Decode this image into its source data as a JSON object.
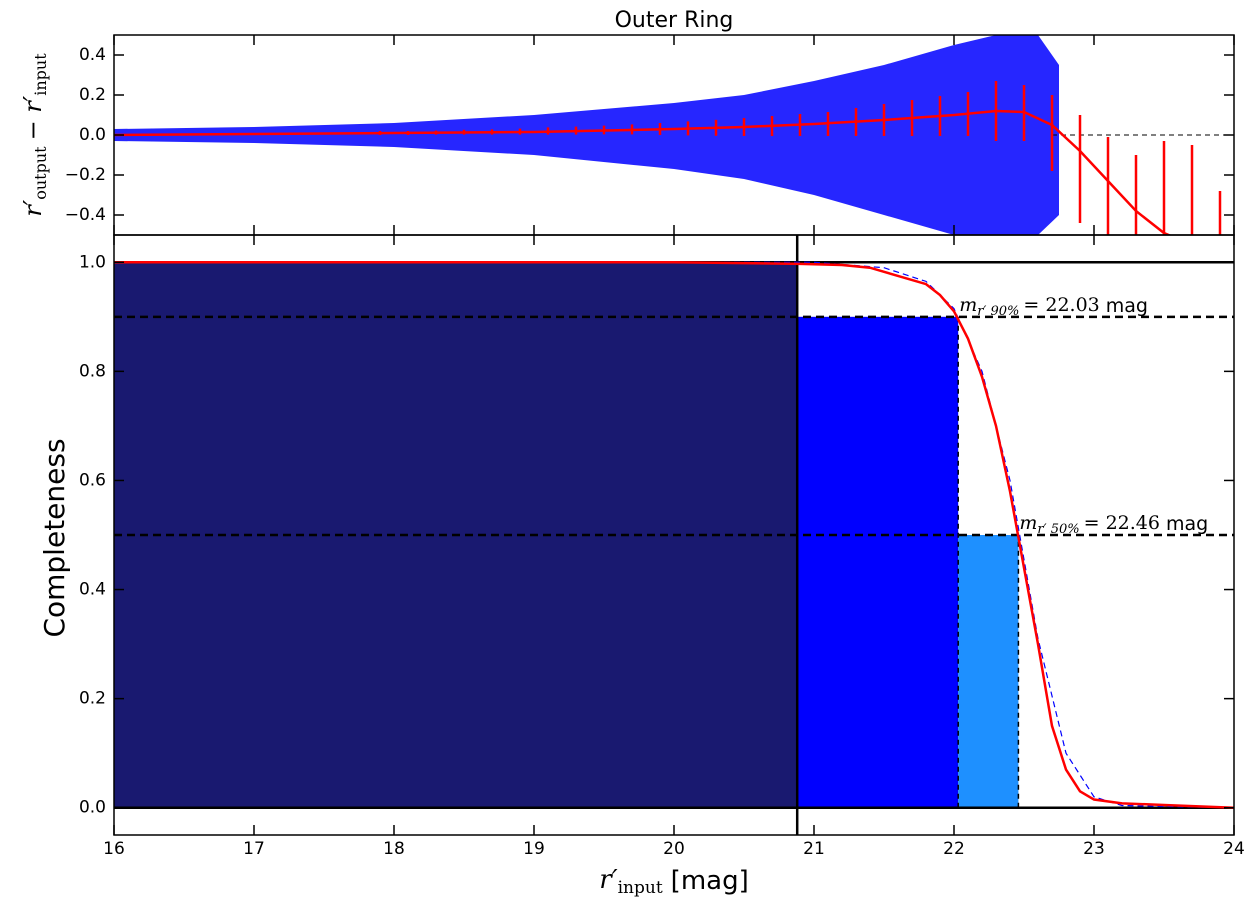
{
  "chart_data": [
    {
      "type": "scatter",
      "title": "Outer Ring",
      "ylabel": {
        "base": "r′",
        "sub1": "output",
        "mid": "− r′",
        "sub2": "input"
      },
      "xlim": [
        16,
        24
      ],
      "ylim": [
        -0.5,
        0.5
      ],
      "xticks": [
        16,
        17,
        18,
        19,
        20,
        21,
        22,
        23,
        24
      ],
      "yticks": [
        {
          "value": -0.4,
          "label": "−0.4"
        },
        {
          "value": -0.2,
          "label": "−0.2"
        },
        {
          "value": 0,
          "label": "0.0"
        },
        0.2,
        0.4
      ],
      "spread": {
        "color": "#0000ff",
        "x": [
          16,
          17,
          18,
          19,
          20,
          20.5,
          21,
          21.5,
          22,
          22.3,
          22.6,
          22.75
        ],
        "upper": [
          0.03,
          0.04,
          0.06,
          0.1,
          0.16,
          0.2,
          0.27,
          0.35,
          0.45,
          0.5,
          0.5,
          0.35
        ],
        "lower": [
          -0.03,
          -0.04,
          -0.06,
          -0.1,
          -0.17,
          -0.22,
          -0.3,
          -0.4,
          -0.5,
          -0.5,
          -0.5,
          -0.4
        ]
      },
      "binned": {
        "color": "#ff0000",
        "x": [
          17.9,
          18.1,
          18.3,
          18.5,
          18.7,
          18.9,
          19.1,
          19.3,
          19.5,
          19.7,
          19.9,
          20.1,
          20.3,
          20.5,
          20.7,
          20.9,
          21.1,
          21.3,
          21.5,
          21.7,
          21.9,
          22.1,
          22.3,
          22.5,
          22.7,
          22.9,
          23.1,
          23.3,
          23.5,
          23.7,
          23.9
        ],
        "values": [
          0.01,
          0.01,
          0.012,
          0.014,
          0.015,
          0.017,
          0.02,
          0.022,
          0.025,
          0.028,
          0.03,
          0.033,
          0.036,
          0.04,
          0.045,
          0.05,
          0.055,
          0.065,
          0.075,
          0.085,
          0.095,
          0.105,
          0.12,
          0.11,
          0.01,
          -0.17,
          -0.3,
          -0.35,
          -0.3,
          -0.3,
          -0.45
        ],
        "errors": [
          0.01,
          0.01,
          0.01,
          0.012,
          0.013,
          0.015,
          0.018,
          0.02,
          0.022,
          0.025,
          0.03,
          0.035,
          0.04,
          0.045,
          0.05,
          0.055,
          0.06,
          0.07,
          0.08,
          0.09,
          0.1,
          0.11,
          0.15,
          0.14,
          0.19,
          0.27,
          0.29,
          0.25,
          0.27,
          0.25,
          0.17
        ]
      },
      "trend": {
        "color": "#ff0000",
        "x": [
          16,
          17,
          18,
          19,
          20,
          20.5,
          21,
          21.5,
          22,
          22.3,
          22.5,
          22.7,
          22.9,
          23.1,
          23.3,
          23.5,
          23.6
        ],
        "values": [
          0,
          0.005,
          0.01,
          0.015,
          0.03,
          0.04,
          0.055,
          0.075,
          0.1,
          0.12,
          0.115,
          0.05,
          -0.08,
          -0.23,
          -0.38,
          -0.49,
          -0.52
        ]
      },
      "reference_line": {
        "y": 0,
        "x": [
          22.7,
          24
        ]
      }
    },
    {
      "type": "bar",
      "xlabel": {
        "base": "r′",
        "sub": "input",
        "unit": "[mag]"
      },
      "ylabel": "Completeness",
      "xlim": [
        16,
        24
      ],
      "ylim": [
        -0.05,
        1.05
      ],
      "xticks": [
        16,
        17,
        18,
        19,
        20,
        21,
        22,
        23,
        24
      ],
      "yticks": [
        {
          "value": 0,
          "label": "0.0"
        },
        0.2,
        0.4,
        0.6,
        0.8,
        {
          "value": 1,
          "label": "1.0"
        }
      ],
      "bars": [
        {
          "x": [
            16,
            20.88
          ],
          "value": 1.0,
          "color": "#191970"
        },
        {
          "x": [
            20.88,
            22.03
          ],
          "value": 0.9,
          "color": "#0000ff"
        },
        {
          "x": [
            22.03,
            22.46
          ],
          "value": 0.5,
          "color": "#1e90ff"
        }
      ],
      "curve": {
        "color": "#ff0000",
        "x": [
          16,
          17,
          18,
          19,
          20,
          20.9,
          21.2,
          21.4,
          21.6,
          21.8,
          21.9,
          22.0,
          22.1,
          22.2,
          22.3,
          22.4,
          22.5,
          22.6,
          22.7,
          22.8,
          22.9,
          23.0,
          23.2,
          23.5,
          24
        ],
        "values": [
          1,
          1,
          1,
          1,
          1,
          0.997,
          0.995,
          0.99,
          0.975,
          0.96,
          0.94,
          0.91,
          0.86,
          0.79,
          0.7,
          0.58,
          0.44,
          0.3,
          0.15,
          0.07,
          0.03,
          0.015,
          0.008,
          0.005,
          0
        ]
      },
      "fit": {
        "color": "#0000ff",
        "x": [
          16,
          21,
          21.5,
          21.8,
          22.0,
          22.2,
          22.4,
          22.6,
          22.8,
          23.0,
          23.2,
          24
        ],
        "values": [
          1,
          1,
          0.99,
          0.965,
          0.915,
          0.8,
          0.6,
          0.31,
          0.1,
          0.02,
          0.004,
          0
        ]
      },
      "annotations": [
        {
          "sym": "m",
          "sub": "r′ 90%",
          "text": "= 22.03",
          "unit": "mag"
        },
        {
          "sym": "m",
          "sub": "r′ 50%",
          "text": "= 22.46",
          "unit": "mag"
        }
      ]
    }
  ]
}
